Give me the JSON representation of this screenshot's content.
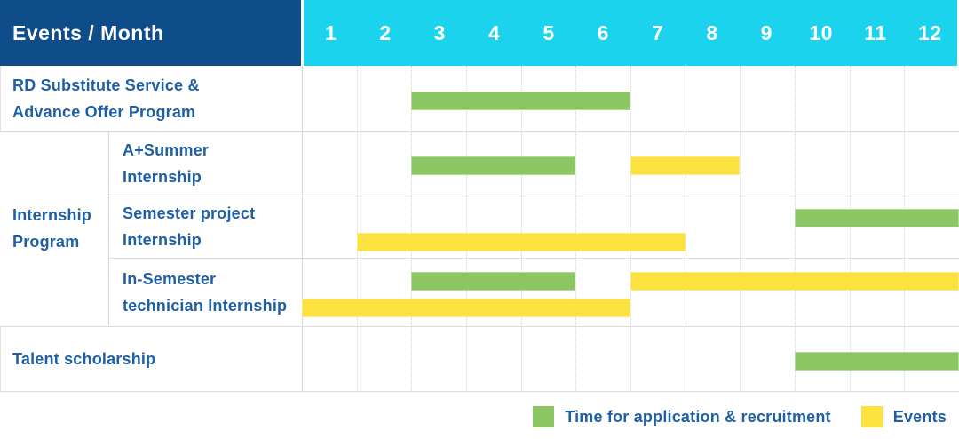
{
  "header": {
    "title": "Events / Month",
    "months": [
      "1",
      "2",
      "3",
      "4",
      "5",
      "6",
      "7",
      "8",
      "9",
      "10",
      "11",
      "12"
    ]
  },
  "colors": {
    "header_navy": "#0F4D8A",
    "header_cyan": "#1BD3ED",
    "bar_green": "#8CC663",
    "bar_yellow": "#FCE23E",
    "label_blue": "#1F5FA4",
    "grid_gray": "#DCDCDC"
  },
  "chart_data": {
    "type": "bar",
    "subtype": "gantt-schedule",
    "title": "Events / Month",
    "x_axis": {
      "label": "Month",
      "ticks": [
        1,
        2,
        3,
        4,
        5,
        6,
        7,
        8,
        9,
        10,
        11,
        12
      ],
      "range": [
        1,
        12
      ]
    },
    "grid": true,
    "legend_position": "bottom-right",
    "legend": [
      {
        "key": "recruitment",
        "label": "Time for application & recruitment",
        "color": "#8CC663"
      },
      {
        "key": "events",
        "label": "Events",
        "color": "#FCE23E"
      }
    ],
    "group_label_lines": [
      "Internship",
      "Program"
    ],
    "rows": [
      {
        "group": "",
        "label": "RD Substitute Service & Advance Offer Program",
        "label_lines": [
          "RD Substitute Service &",
          "Advance Offer Program"
        ],
        "bars": [
          {
            "series": "recruitment",
            "start_month": 3,
            "end_month": 6,
            "lane": "mid"
          }
        ]
      },
      {
        "group": "Internship Program",
        "label": "A+Summer Internship",
        "label_lines": [
          "A+Summer",
          "Internship"
        ],
        "bars": [
          {
            "series": "recruitment",
            "start_month": 3,
            "end_month": 5,
            "lane": "mid"
          },
          {
            "series": "events",
            "start_month": 7,
            "end_month": 8,
            "lane": "mid"
          }
        ]
      },
      {
        "group": "Internship Program",
        "label": "Semester project Internship",
        "label_lines": [
          "Semester project",
          "Internship"
        ],
        "bars": [
          {
            "series": "recruitment",
            "start_month": 10,
            "end_month": 12,
            "lane": "top"
          },
          {
            "series": "events",
            "start_month": 2,
            "end_month": 7,
            "lane": "bottom"
          }
        ]
      },
      {
        "group": "Internship Program",
        "label": "In-Semester technician Internship",
        "label_lines": [
          "In-Semester",
          "technician Internship"
        ],
        "bars": [
          {
            "series": "recruitment",
            "start_month": 3,
            "end_month": 5,
            "lane": "top"
          },
          {
            "series": "events",
            "start_month": 7,
            "end_month": 12,
            "lane": "top"
          },
          {
            "series": "events",
            "start_month": 1,
            "end_month": 6,
            "lane": "bottom"
          }
        ]
      },
      {
        "group": "",
        "label": "Talent scholarship",
        "label_lines": [
          "Talent scholarship"
        ],
        "bars": [
          {
            "series": "recruitment",
            "start_month": 10,
            "end_month": 12,
            "lane": "mid"
          }
        ]
      }
    ]
  }
}
